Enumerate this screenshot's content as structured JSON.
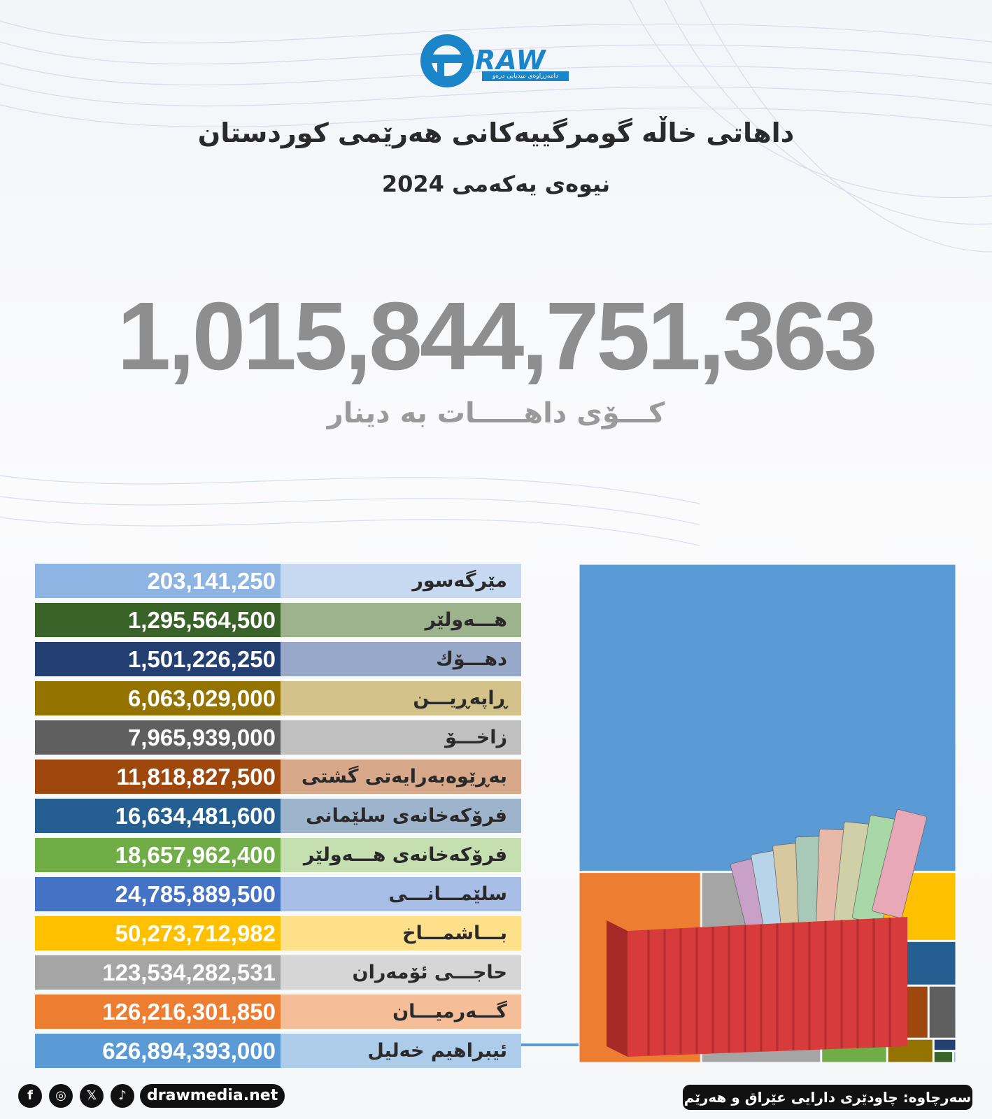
{
  "header": {
    "logo_text": "RAW",
    "logo_tagline": "دامەزراوەی میدیایی درەو",
    "title": "داهاتی خاڵە گومرگییەکانی هەرێمی کوردستان",
    "subtitle": "نیوەی یەکەمی 2024"
  },
  "total": {
    "value": "1,015,844,751,363",
    "label": "کـــۆی داهـــــات بە دینار"
  },
  "colors": {
    "brand": "#1a85c8",
    "total_text": "#8e8e8e"
  },
  "chart_data": {
    "type": "treemap",
    "title": "داهاتی خاڵە گومرگییەکانی هەرێمی کوردستان",
    "subtitle": "نیوەی یەکەمی 2024",
    "unit": "دینار",
    "series": [
      {
        "name": "مێرگەسور",
        "value": 203141250,
        "display": "203,141,250",
        "color": "#8db4e2",
        "label_bg": "#c6d9f1"
      },
      {
        "name": "هـــەولێر",
        "value": 1295564500,
        "display": "1,295,564,500",
        "color": "#3a632a",
        "label_bg": "#9db38e"
      },
      {
        "name": "دهـــۆك",
        "value": 1501226250,
        "display": "1,501,226,250",
        "color": "#243f72",
        "label_bg": "#97a8c8"
      },
      {
        "name": "ڕاپەڕیـــن",
        "value": 6063029000,
        "display": "6,063,029,000",
        "color": "#957300",
        "label_bg": "#d4c28b"
      },
      {
        "name": "زاخـــۆ",
        "value": 7965939000,
        "display": "7,965,939,000",
        "color": "#5f5f5f",
        "label_bg": "#c0c0c0"
      },
      {
        "name": "بەڕێوەبەرایەتی گشتی گومرگ",
        "value": 11818827500,
        "display": "11,818,827,500",
        "color": "#9e480e",
        "label_bg": "#d8a88b"
      },
      {
        "name": "فرۆکەخانەی سلێمانی",
        "value": 16634481600,
        "display": "16,634,481,600",
        "color": "#255e91",
        "label_bg": "#9db4cc"
      },
      {
        "name": "فرۆکەخانەی هـــەولێر",
        "value": 18657962400,
        "display": "18,657,962,400",
        "color": "#70ad47",
        "label_bg": "#c5dfb1"
      },
      {
        "name": "سلێمـــانـــی",
        "value": 24785889500,
        "display": "24,785,889,500",
        "color": "#4472c4",
        "label_bg": "#a9bee6"
      },
      {
        "name": "بـــاشمـــاخ",
        "value": 50273712982,
        "display": "50,273,712,982",
        "color": "#ffc000",
        "label_bg": "#ffe08a"
      },
      {
        "name": "حاجـــی ئۆمەران",
        "value": 123534282531,
        "display": "123,534,282,531",
        "color": "#a5a5a5",
        "label_bg": "#d6d6d6"
      },
      {
        "name": "گـــەرمیـــان",
        "value": 126216301850,
        "display": "126,216,301,850",
        "color": "#ed7d31",
        "label_bg": "#f5bd98"
      },
      {
        "name": "ئیبراهیم خەلیل",
        "value": 626894393000,
        "display": "626,894,393,000",
        "color": "#5b9bd5",
        "label_bg": "#acccea"
      }
    ]
  },
  "footer": {
    "social_facebook": "f",
    "social_instagram": "◎",
    "social_x": "𝕏",
    "social_tiktok": "♪",
    "website": "drawmedia.net",
    "source": "سەرچاوە: چاودێری دارایی عێراق و هەرێم"
  }
}
